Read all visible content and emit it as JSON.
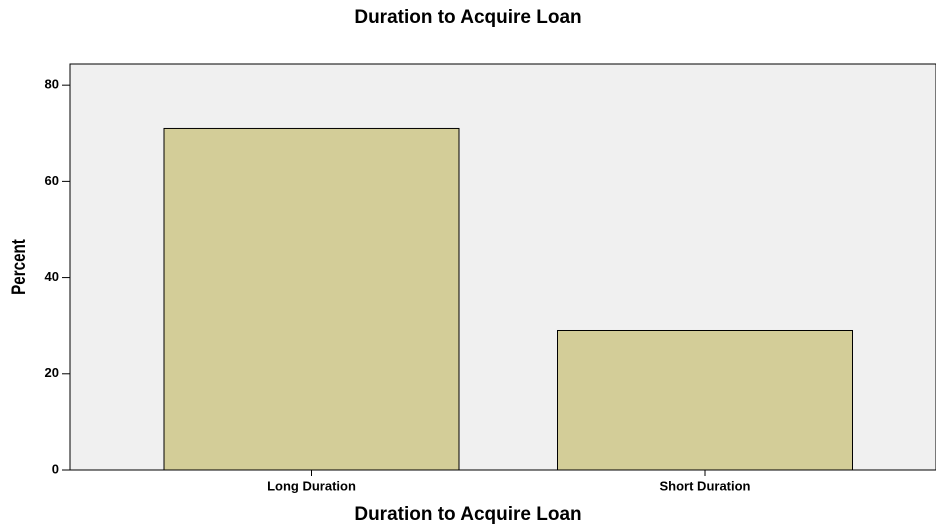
{
  "chart_data": {
    "type": "bar",
    "title": "Duration to Acquire Loan",
    "x_label": "Duration to Acquire Loan",
    "y_label": "Percent",
    "categories": [
      "Long Duration",
      "Short Duration"
    ],
    "values": [
      71,
      29
    ],
    "color": "#d3cd98",
    "ylim": [
      0,
      84.4
    ],
    "yticks": [
      0,
      20,
      40,
      60,
      80
    ],
    "grid": false
  }
}
